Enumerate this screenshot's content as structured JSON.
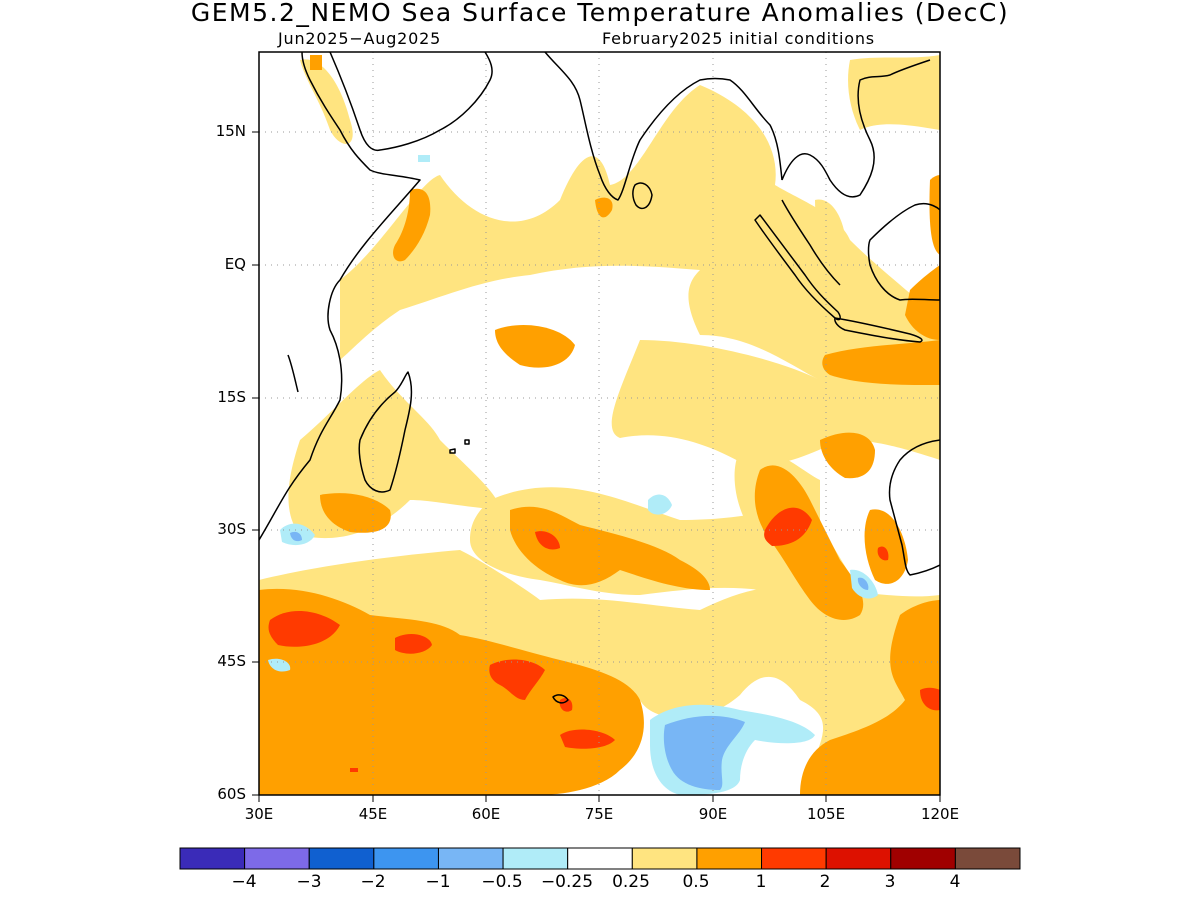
{
  "title": "GEM5.2_NEMO Sea Surface Temperature Anomalies (DecC)",
  "subtitle_left": "Jun2025−Aug2025",
  "subtitle_right": "February2025 initial conditions",
  "map": {
    "lat_labels": [
      "15N",
      "EQ",
      "15S",
      "30S",
      "45S",
      "60S"
    ],
    "lon_labels": [
      "30E",
      "45E",
      "60E",
      "75E",
      "90E",
      "105E",
      "120E"
    ],
    "coastline_color": "#000000",
    "gridline_style": "dotted"
  },
  "colorbar": {
    "boundary_labels": [
      "−4",
      "−3",
      "−2",
      "−1",
      "−0.5",
      "−0.25",
      "0.25",
      "0.5",
      "1",
      "2",
      "3",
      "4"
    ],
    "colors": [
      "#3a2bb8",
      "#7d6ae8",
      "#1060d0",
      "#3d95f0",
      "#78b6f5",
      "#b0ecf8",
      "#ffffff",
      "#ffe480",
      "#ffa000",
      "#ff3a00",
      "#dd1100",
      "#a00000",
      "#7a4a3a"
    ]
  }
}
